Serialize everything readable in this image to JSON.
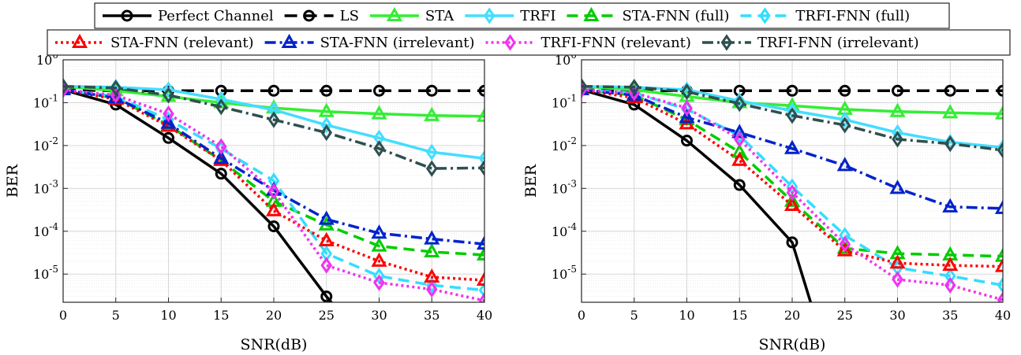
{
  "chart_data": [
    {
      "type": "line",
      "xlabel": "SNR(dB)",
      "ylabel": "BER",
      "yscale": "log",
      "xlim": [
        0,
        40
      ],
      "ylim": [
        2.2e-06,
        1
      ],
      "grid": true,
      "x": [
        0,
        5,
        10,
        15,
        20,
        25,
        30,
        35,
        40
      ],
      "xticks": [
        "0",
        "5",
        "10",
        "15",
        "20",
        "25",
        "30",
        "35",
        "40"
      ],
      "series": [
        {
          "name": "Perfect Channel",
          "values": [
            0.2,
            0.09,
            0.015,
            0.0022,
            0.00013,
            3e-06,
            null,
            null,
            null
          ]
        },
        {
          "name": "LS",
          "values": [
            0.2,
            0.19,
            0.19,
            0.19,
            0.19,
            0.19,
            0.19,
            0.19,
            0.19
          ]
        },
        {
          "name": "STA",
          "values": [
            0.24,
            0.19,
            0.14,
            0.1,
            0.075,
            0.062,
            0.055,
            0.05,
            0.048
          ]
        },
        {
          "name": "TRFI",
          "values": [
            0.24,
            0.23,
            0.2,
            0.12,
            0.068,
            0.03,
            0.015,
            0.007,
            0.005
          ]
        },
        {
          "name": "STA-FNN (full)",
          "values": [
            0.2,
            0.13,
            0.03,
            0.0045,
            0.0005,
            0.00014,
            4.5e-05,
            3.3e-05,
            2.8e-05
          ]
        },
        {
          "name": "TRFI-FNN (full)",
          "values": [
            0.2,
            0.14,
            0.04,
            0.0085,
            0.0015,
            3e-05,
            9e-06,
            5.5e-06,
            4.2e-06
          ]
        },
        {
          "name": "STA-FNN (relevant)",
          "values": [
            0.2,
            0.12,
            0.028,
            0.0045,
            0.0003,
            6e-05,
            2e-05,
            8.5e-06,
            7.2e-06
          ]
        },
        {
          "name": "STA-FNN (irrelevant)",
          "values": [
            0.2,
            0.13,
            0.033,
            0.005,
            0.0009,
            0.00019,
            9e-05,
            6.6e-05,
            5e-05
          ]
        },
        {
          "name": "TRFI-FNN (relevant)",
          "values": [
            0.2,
            0.15,
            0.055,
            0.0095,
            0.00085,
            1.6e-05,
            6.3e-06,
            4.4e-06,
            2.4e-06
          ]
        },
        {
          "name": "TRFI-FNN (irrelevant)",
          "values": [
            0.24,
            0.22,
            0.15,
            0.08,
            0.04,
            0.02,
            0.0085,
            0.0029,
            0.003
          ]
        }
      ]
    },
    {
      "type": "line",
      "xlabel": "SNR(dB)",
      "ylabel": "BER",
      "yscale": "log",
      "xlim": [
        0,
        40
      ],
      "ylim": [
        2.2e-06,
        1
      ],
      "grid": true,
      "x": [
        0,
        5,
        10,
        15,
        20,
        25,
        30,
        35,
        40
      ],
      "xticks": [
        "0",
        "5",
        "10",
        "15",
        "20",
        "25",
        "30",
        "35",
        "40"
      ],
      "series": [
        {
          "name": "Perfect Channel",
          "values": [
            0.2,
            0.09,
            0.013,
            0.0012,
            5.5e-05,
            null,
            null,
            null,
            null
          ]
        },
        {
          "name": "LS",
          "values": [
            0.2,
            0.19,
            0.19,
            0.19,
            0.19,
            0.19,
            0.19,
            0.19,
            0.19
          ]
        },
        {
          "name": "STA",
          "values": [
            0.24,
            0.2,
            0.14,
            0.1,
            0.085,
            0.07,
            0.062,
            0.058,
            0.055
          ]
        },
        {
          "name": "TRFI",
          "values": [
            0.24,
            0.23,
            0.2,
            0.11,
            0.065,
            0.04,
            0.02,
            0.012,
            0.009
          ]
        },
        {
          "name": "STA-FNN (full)",
          "values": [
            0.2,
            0.15,
            0.04,
            0.007,
            0.0005,
            4e-05,
            3e-05,
            2.8e-05,
            2.6e-05
          ]
        },
        {
          "name": "TRFI-FNN (full)",
          "values": [
            0.2,
            0.17,
            0.07,
            0.017,
            0.0011,
            8e-05,
            1.4e-05,
            9e-06,
            5.5e-06
          ]
        },
        {
          "name": "STA-FNN (relevant)",
          "values": [
            0.2,
            0.13,
            0.032,
            0.0045,
            0.0004,
            3.5e-05,
            1.8e-05,
            1.6e-05,
            1.5e-05
          ]
        },
        {
          "name": "STA-FNN (irrelevant)",
          "values": [
            0.2,
            0.15,
            0.045,
            0.02,
            0.0085,
            0.0034,
            0.001,
            0.00037,
            0.00034
          ]
        },
        {
          "name": "TRFI-FNN (relevant)",
          "values": [
            0.2,
            0.17,
            0.075,
            0.014,
            0.0008,
            5e-05,
            7.5e-06,
            5.5e-06,
            2.5e-06
          ]
        },
        {
          "name": "TRFI-FNN (irrelevant)",
          "values": [
            0.24,
            0.23,
            0.18,
            0.095,
            0.05,
            0.03,
            0.014,
            0.011,
            0.0078
          ]
        }
      ]
    }
  ],
  "styles": [
    {
      "color": "#000000",
      "dash": "",
      "marker": "circle"
    },
    {
      "color": "#000000",
      "dash": "16,9",
      "marker": "circle"
    },
    {
      "color": "#33ee33",
      "dash": "",
      "marker": "triangle"
    },
    {
      "color": "#44ddff",
      "dash": "",
      "marker": "diamond"
    },
    {
      "color": "#00cc00",
      "dash": "14,8",
      "marker": "triangle"
    },
    {
      "color": "#33ddff",
      "dash": "14,8",
      "marker": "diamond"
    },
    {
      "color": "#ff0000",
      "dash": "3,4",
      "marker": "triangle"
    },
    {
      "color": "#0022cc",
      "dash": "14,5,3,5",
      "marker": "triangle"
    },
    {
      "color": "#ee33ee",
      "dash": "3,4",
      "marker": "diamond"
    },
    {
      "color": "#2f4f4f",
      "dash": "14,5,3,5",
      "marker": "diamond"
    }
  ],
  "legend": {
    "row1": [
      "Perfect Channel",
      "LS",
      "STA",
      "TRFI",
      "STA-FNN (full)",
      "TRFI-FNN (full)"
    ],
    "row2": [
      "STA-FNN (relevant)",
      "STA-FNN (irrelevant)",
      "TRFI-FNN (relevant)",
      "TRFI-FNN (irrelevant)"
    ]
  }
}
